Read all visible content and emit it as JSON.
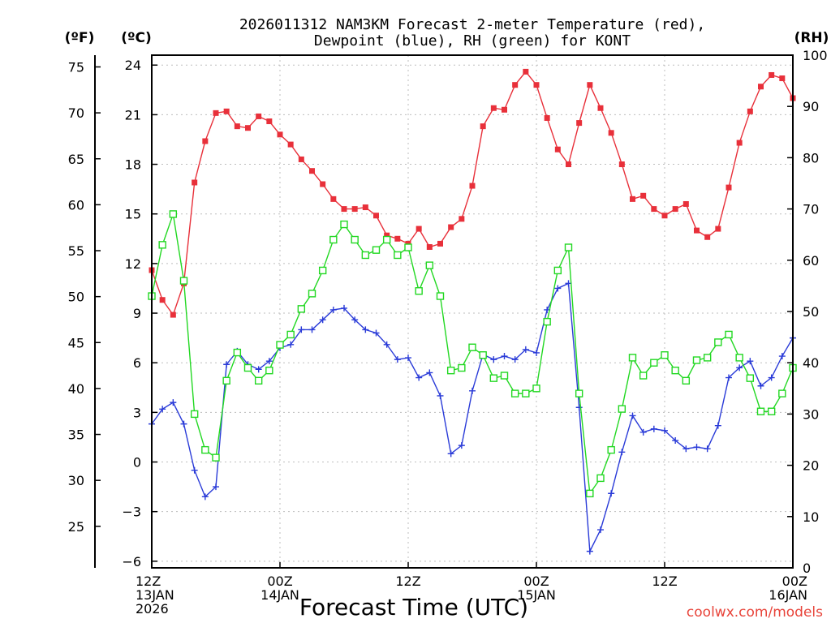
{
  "chart_data": {
    "type": "line",
    "title_line1": "2026011312 NAM3KM Forecast 2-meter Temperature (red),",
    "title_line2": "Dewpoint (blue), RH (green) for KONT",
    "xlabel": "Forecast Time (UTC)",
    "credit": "coolwx.com/models",
    "unit_labels": {
      "fahrenheit": "(ºF)",
      "celsius": "(ºC)",
      "rh": "(RH)"
    },
    "x_range_hours": [
      0,
      60
    ],
    "x_ticks": [
      {
        "hour": 0,
        "l1": "12Z",
        "l2": "13JAN",
        "l3": "2026"
      },
      {
        "hour": 12,
        "l1": "00Z",
        "l2": "14JAN",
        "l3": ""
      },
      {
        "hour": 24,
        "l1": "12Z",
        "l2": "",
        "l3": ""
      },
      {
        "hour": 36,
        "l1": "00Z",
        "l2": "15JAN",
        "l3": ""
      },
      {
        "hour": 48,
        "l1": "12Z",
        "l2": "",
        "l3": ""
      },
      {
        "hour": 60,
        "l1": "00Z",
        "l2": "16JAN",
        "l3": ""
      }
    ],
    "y_celsius": {
      "range": [
        -6.4,
        24.6
      ],
      "ticks": [
        24,
        21,
        18,
        15,
        12,
        9,
        6,
        3,
        0,
        -3,
        -6
      ],
      "labels": [
        "24",
        "21",
        "18",
        "15",
        "12",
        "9",
        "6",
        "3",
        "0",
        "−3",
        "−6"
      ]
    },
    "y_fahrenheit": {
      "ticks": [
        75,
        70,
        65,
        60,
        55,
        50,
        45,
        40,
        35,
        30,
        25
      ],
      "labels": [
        "75",
        "70",
        "65",
        "60",
        "55",
        "50",
        "45",
        "40",
        "35",
        "30",
        "25"
      ]
    },
    "y_rh": {
      "range": [
        0,
        100
      ],
      "ticks": [
        100,
        90,
        80,
        70,
        60,
        50,
        40,
        30,
        20,
        10,
        0
      ],
      "labels": [
        "100",
        "90",
        "80",
        "70",
        "60",
        "50",
        "40",
        "30",
        "20",
        "10",
        "0"
      ]
    },
    "series": [
      {
        "name": "Temperature",
        "units": "C",
        "color": "#e8303a",
        "marker": "filled-square",
        "values": [
          11.6,
          9.8,
          8.9,
          10.8,
          16.9,
          19.4,
          21.1,
          21.2,
          20.3,
          20.2,
          20.9,
          20.6,
          19.8,
          19.2,
          18.3,
          17.6,
          16.8,
          15.9,
          15.3,
          15.3,
          15.4,
          14.9,
          13.7,
          13.5,
          13.2,
          14.1,
          13.0,
          13.2,
          14.2,
          14.7,
          16.7,
          20.3,
          21.4,
          21.3,
          22.8,
          23.6,
          22.8,
          20.8,
          18.9,
          18.0,
          20.5,
          22.8,
          21.4,
          19.9,
          18.0,
          15.9,
          16.1,
          15.3,
          14.9,
          15.3,
          15.6,
          14.0,
          13.6,
          14.1,
          16.6,
          19.3,
          21.2,
          22.7,
          23.4,
          23.2,
          22.0
        ]
      },
      {
        "name": "Dewpoint",
        "units": "C",
        "color": "#2a3bd8",
        "marker": "plus",
        "values": [
          2.3,
          3.2,
          3.6,
          2.3,
          -0.5,
          -2.1,
          -1.5,
          5.9,
          6.7,
          5.9,
          5.6,
          6.1,
          6.9,
          7.1,
          8.0,
          8.0,
          8.6,
          9.2,
          9.3,
          8.6,
          8.0,
          7.8,
          7.1,
          6.2,
          6.3,
          5.1,
          5.4,
          4.0,
          0.5,
          1.0,
          4.3,
          6.5,
          6.2,
          6.4,
          6.2,
          6.8,
          6.6,
          9.2,
          10.5,
          10.8,
          3.3,
          -5.4,
          -4.1,
          -1.9,
          0.6,
          2.8,
          1.8,
          2.0,
          1.9,
          1.3,
          0.8,
          0.9,
          0.8,
          2.2,
          5.1,
          5.7,
          6.1,
          4.6,
          5.1,
          6.4,
          7.5
        ]
      },
      {
        "name": "RH",
        "units": "%",
        "color": "#22d822",
        "marker": "open-square",
        "values": [
          53,
          63,
          69,
          56,
          30,
          23,
          21.5,
          36.5,
          42,
          39,
          36.5,
          38.5,
          43.5,
          45.5,
          50.5,
          53.5,
          58,
          64,
          67,
          64,
          61,
          62,
          64,
          61,
          62.5,
          54,
          59,
          53,
          38.5,
          39,
          43,
          41.5,
          37,
          37.5,
          34,
          34,
          35,
          48,
          58,
          62.5,
          34,
          14.5,
          17.5,
          23,
          31,
          41,
          37.5,
          40,
          41.5,
          38.5,
          36.5,
          40.5,
          41,
          44,
          45.5,
          41,
          37,
          30.5,
          30.5,
          34,
          39
        ]
      }
    ]
  }
}
